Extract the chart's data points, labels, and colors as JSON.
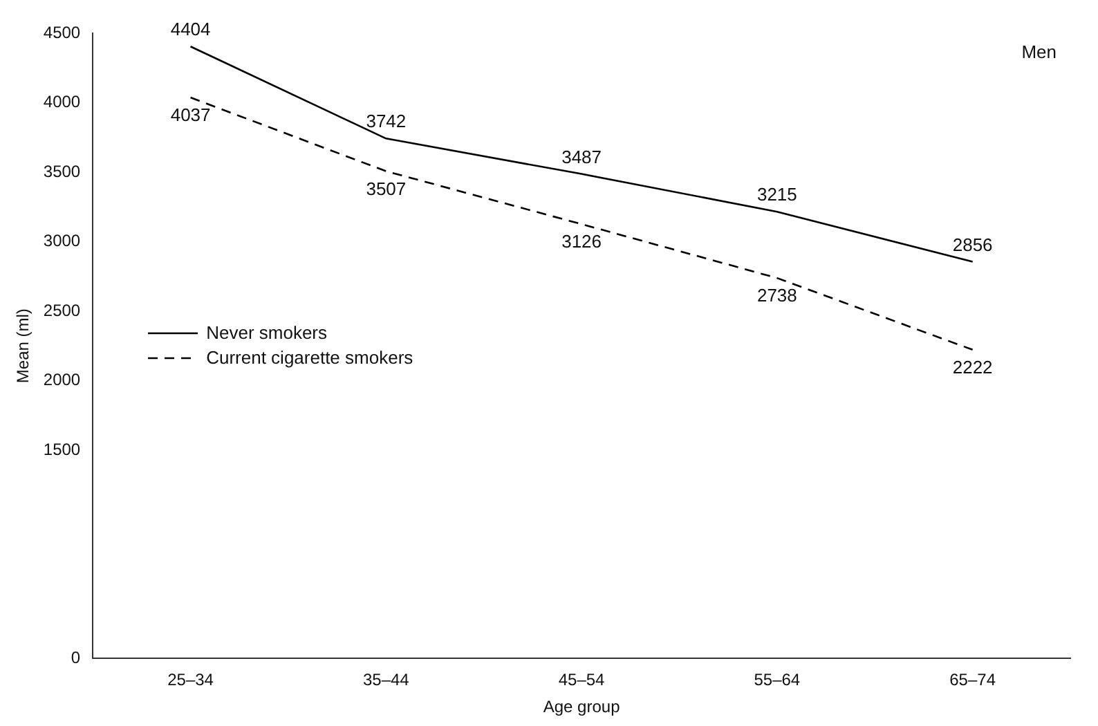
{
  "chart_data": {
    "type": "line",
    "xlabel": "Age group",
    "ylabel": "Mean (ml)",
    "annotations": [
      "Men"
    ],
    "categories": [
      "25–34",
      "35–44",
      "45–54",
      "55–64",
      "65–74"
    ],
    "series": [
      {
        "name": "Never smokers",
        "color": "#000000",
        "line_style": "solid",
        "values": [
          4404,
          3742,
          3487,
          3215,
          2856
        ]
      },
      {
        "name": "Current cigarette smokers",
        "color": "#000000",
        "line_style": "dashed",
        "values": [
          4037,
          3507,
          3126,
          2738,
          2222
        ]
      }
    ],
    "ylim": [
      0,
      4500
    ],
    "yticks": [
      0,
      1500,
      2000,
      2500,
      3000,
      3500,
      4000,
      4500
    ],
    "data_labels": true,
    "grid": false,
    "legend": "center left",
    "marker": "none"
  }
}
